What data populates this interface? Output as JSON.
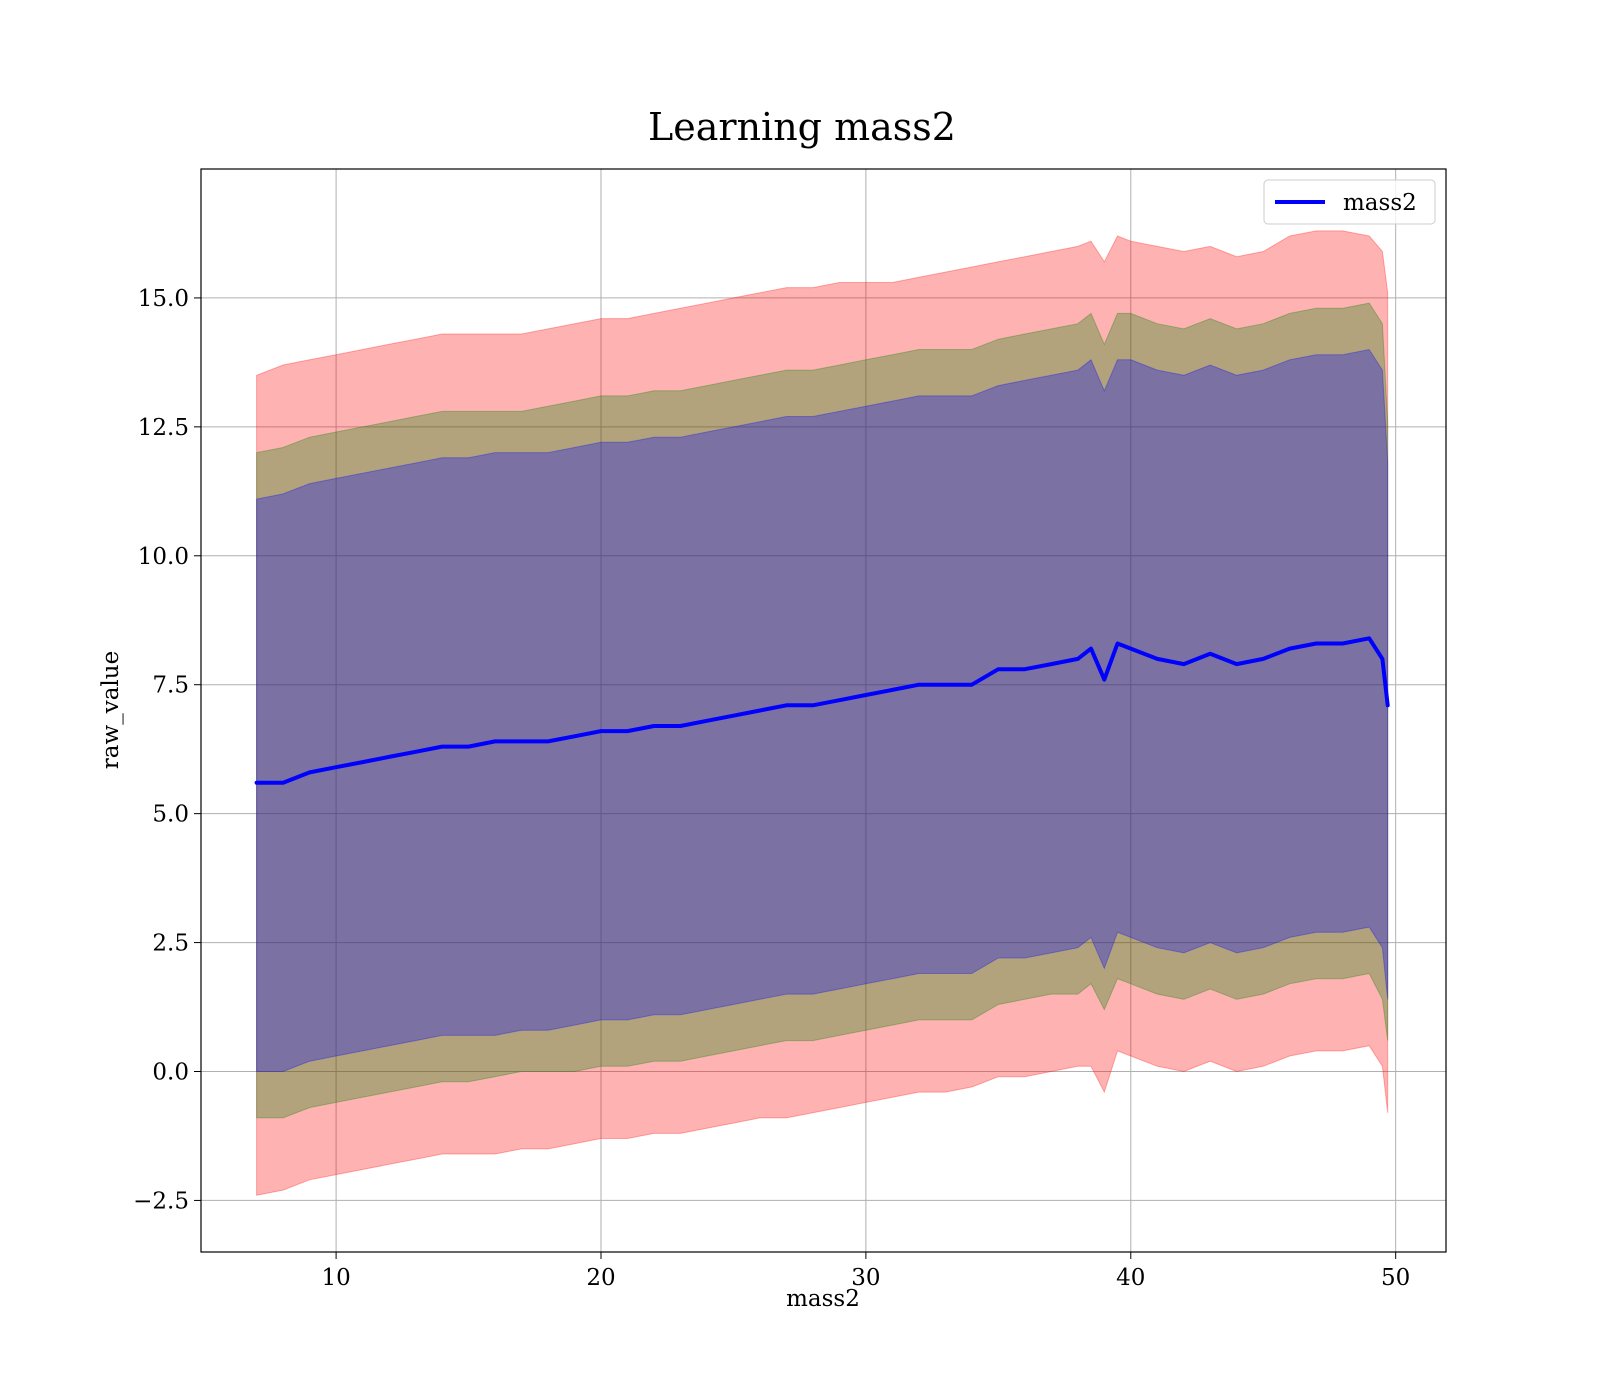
{
  "chart_data": {
    "type": "area",
    "title": "Learning mass2",
    "xlabel": "mass2",
    "ylabel": "raw_value",
    "xlim": [
      4.9,
      51.9
    ],
    "ylim": [
      -3.5,
      17.5
    ],
    "xticks": [
      10,
      20,
      30,
      40,
      50
    ],
    "xtick_labels": [
      "10",
      "20",
      "30",
      "40",
      "50"
    ],
    "yticks": [
      -2.5,
      0.0,
      2.5,
      5.0,
      7.5,
      10.0,
      12.5,
      15.0
    ],
    "ytick_labels": [
      "−2.5",
      "0.0",
      "2.5",
      "5.0",
      "7.5",
      "10.0",
      "12.5",
      "15.0"
    ],
    "grid": true,
    "legend_position": "top-right",
    "colors": {
      "line": "#0000ff",
      "band_outer": "#ff0000",
      "band_middle": "#008000",
      "band_inner": "#0000ff"
    },
    "series": [
      {
        "name": "mass2",
        "x": [
          7.0,
          8.0,
          9.0,
          10.0,
          11.0,
          12.0,
          13.0,
          14.0,
          15.0,
          16.0,
          17.0,
          18.0,
          19.0,
          20.0,
          21.0,
          22.0,
          23.0,
          24.0,
          25.0,
          26.0,
          27.0,
          28.0,
          29.0,
          30.0,
          31.0,
          32.0,
          33.0,
          34.0,
          35.0,
          36.0,
          37.0,
          38.0,
          38.5,
          39.0,
          39.5,
          40.0,
          41.0,
          42.0,
          43.0,
          44.0,
          45.0,
          46.0,
          47.0,
          48.0,
          49.0,
          49.5,
          49.7
        ],
        "y": [
          5.6,
          5.6,
          5.8,
          5.9,
          6.0,
          6.1,
          6.2,
          6.3,
          6.3,
          6.4,
          6.4,
          6.4,
          6.5,
          6.6,
          6.6,
          6.7,
          6.7,
          6.8,
          6.9,
          7.0,
          7.1,
          7.1,
          7.2,
          7.3,
          7.4,
          7.5,
          7.5,
          7.5,
          7.8,
          7.8,
          7.9,
          8.0,
          8.2,
          7.6,
          8.3,
          8.2,
          8.0,
          7.9,
          8.1,
          7.9,
          8.0,
          8.2,
          8.3,
          8.3,
          8.4,
          8.0,
          7.1
        ]
      }
    ],
    "bands": {
      "outer": {
        "upper": [
          13.5,
          13.7,
          13.8,
          13.9,
          14.0,
          14.1,
          14.2,
          14.3,
          14.3,
          14.3,
          14.3,
          14.4,
          14.5,
          14.6,
          14.6,
          14.7,
          14.8,
          14.9,
          15.0,
          15.1,
          15.2,
          15.2,
          15.3,
          15.3,
          15.3,
          15.4,
          15.5,
          15.6,
          15.7,
          15.8,
          15.9,
          16.0,
          16.1,
          15.7,
          16.2,
          16.1,
          16.0,
          15.9,
          16.0,
          15.8,
          15.9,
          16.2,
          16.3,
          16.3,
          16.2,
          15.9,
          15.1
        ],
        "lower": [
          -2.4,
          -2.3,
          -2.1,
          -2.0,
          -1.9,
          -1.8,
          -1.7,
          -1.6,
          -1.6,
          -1.6,
          -1.5,
          -1.5,
          -1.4,
          -1.3,
          -1.3,
          -1.2,
          -1.2,
          -1.1,
          -1.0,
          -0.9,
          -0.9,
          -0.8,
          -0.7,
          -0.6,
          -0.5,
          -0.4,
          -0.4,
          -0.3,
          -0.1,
          -0.1,
          0.0,
          0.1,
          0.1,
          -0.4,
          0.4,
          0.3,
          0.1,
          0.0,
          0.2,
          0.0,
          0.1,
          0.3,
          0.4,
          0.4,
          0.5,
          0.1,
          -0.8
        ]
      },
      "middle": {
        "upper": [
          12.0,
          12.1,
          12.3,
          12.4,
          12.5,
          12.6,
          12.7,
          12.8,
          12.8,
          12.8,
          12.8,
          12.9,
          13.0,
          13.1,
          13.1,
          13.2,
          13.2,
          13.3,
          13.4,
          13.5,
          13.6,
          13.6,
          13.7,
          13.8,
          13.9,
          14.0,
          14.0,
          14.0,
          14.2,
          14.3,
          14.4,
          14.5,
          14.7,
          14.1,
          14.7,
          14.7,
          14.5,
          14.4,
          14.6,
          14.4,
          14.5,
          14.7,
          14.8,
          14.8,
          14.9,
          14.5,
          12.6
        ],
        "lower": [
          -0.9,
          -0.9,
          -0.7,
          -0.6,
          -0.5,
          -0.4,
          -0.3,
          -0.2,
          -0.2,
          -0.1,
          0.0,
          0.0,
          0.0,
          0.1,
          0.1,
          0.2,
          0.2,
          0.3,
          0.4,
          0.5,
          0.6,
          0.6,
          0.7,
          0.8,
          0.9,
          1.0,
          1.0,
          1.0,
          1.3,
          1.4,
          1.5,
          1.5,
          1.7,
          1.2,
          1.8,
          1.7,
          1.5,
          1.4,
          1.6,
          1.4,
          1.5,
          1.7,
          1.8,
          1.8,
          1.9,
          1.4,
          0.6
        ]
      },
      "inner": {
        "upper": [
          11.1,
          11.2,
          11.4,
          11.5,
          11.6,
          11.7,
          11.8,
          11.9,
          11.9,
          12.0,
          12.0,
          12.0,
          12.1,
          12.2,
          12.2,
          12.3,
          12.3,
          12.4,
          12.5,
          12.6,
          12.7,
          12.7,
          12.8,
          12.9,
          13.0,
          13.1,
          13.1,
          13.1,
          13.3,
          13.4,
          13.5,
          13.6,
          13.8,
          13.2,
          13.8,
          13.8,
          13.6,
          13.5,
          13.7,
          13.5,
          13.6,
          13.8,
          13.9,
          13.9,
          14.0,
          13.6,
          11.8
        ],
        "lower": [
          0.0,
          0.0,
          0.2,
          0.3,
          0.4,
          0.5,
          0.6,
          0.7,
          0.7,
          0.7,
          0.8,
          0.8,
          0.9,
          1.0,
          1.0,
          1.1,
          1.1,
          1.2,
          1.3,
          1.4,
          1.5,
          1.5,
          1.6,
          1.7,
          1.8,
          1.9,
          1.9,
          1.9,
          2.2,
          2.2,
          2.3,
          2.4,
          2.6,
          2.0,
          2.7,
          2.6,
          2.4,
          2.3,
          2.5,
          2.3,
          2.4,
          2.6,
          2.7,
          2.7,
          2.8,
          2.4,
          1.4
        ]
      }
    }
  }
}
